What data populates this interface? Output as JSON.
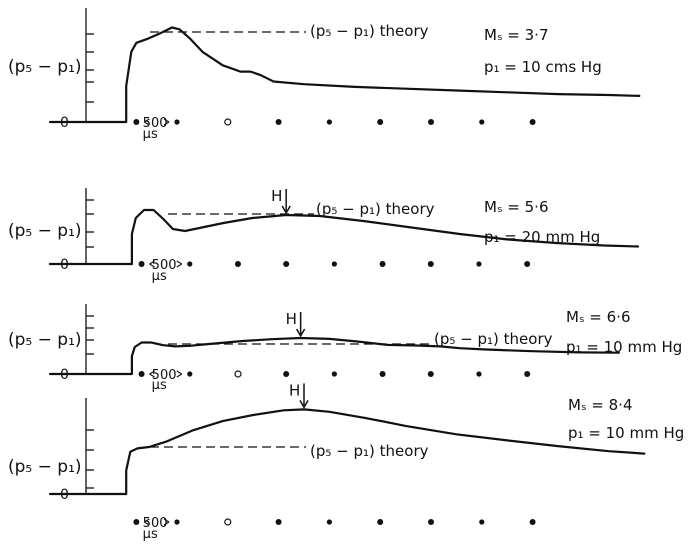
{
  "ylabel": "(p₅ − p₁)",
  "zero_label": "0",
  "theory_label": "(p₅ − p₁) theory",
  "arrow_label": "H",
  "time_marker": {
    "label": "500",
    "unit": "μs"
  },
  "chart_data": [
    {
      "type": "line",
      "params": {
        "ms": "Mₛ = 3·7",
        "p1": "p₁ = 10 cms Hg"
      },
      "has_H": false,
      "theory_level": 1.0,
      "curve": [
        [
          0,
          0
        ],
        [
          1.5,
          0
        ],
        [
          1.5,
          0.4
        ],
        [
          1.6,
          0.78
        ],
        [
          1.7,
          0.88
        ],
        [
          1.9,
          0.92
        ],
        [
          2.15,
          0.98
        ],
        [
          2.4,
          1.05
        ],
        [
          2.55,
          1.03
        ],
        [
          2.75,
          0.93
        ],
        [
          3.0,
          0.78
        ],
        [
          3.4,
          0.63
        ],
        [
          3.75,
          0.56
        ],
        [
          3.95,
          0.56
        ],
        [
          4.15,
          0.52
        ],
        [
          4.4,
          0.45
        ],
        [
          5,
          0.42
        ],
        [
          6,
          0.39
        ],
        [
          7,
          0.37
        ],
        [
          8,
          0.35
        ],
        [
          9,
          0.33
        ],
        [
          10,
          0.31
        ],
        [
          11,
          0.3
        ],
        [
          11.6,
          0.29
        ]
      ],
      "dots_x": [
        1.7,
        2.5,
        3.5,
        4.5,
        5.5,
        6.5,
        7.5,
        8.5,
        9.5
      ]
    },
    {
      "type": "line",
      "params": {
        "ms": "Mₛ = 5·6",
        "p1": "p₁ = 20 mm Hg"
      },
      "has_H": true,
      "H_x": 4.9,
      "theory_level": 1.0,
      "curve": [
        [
          0,
          0
        ],
        [
          1.7,
          0
        ],
        [
          1.7,
          0.6
        ],
        [
          1.78,
          0.92
        ],
        [
          1.95,
          1.08
        ],
        [
          2.15,
          1.08
        ],
        [
          2.35,
          0.9
        ],
        [
          2.55,
          0.7
        ],
        [
          2.8,
          0.66
        ],
        [
          3.1,
          0.72
        ],
        [
          3.6,
          0.82
        ],
        [
          4.2,
          0.92
        ],
        [
          4.9,
          0.98
        ],
        [
          5.6,
          0.96
        ],
        [
          6.5,
          0.86
        ],
        [
          7.5,
          0.73
        ],
        [
          8.5,
          0.6
        ],
        [
          9.5,
          0.49
        ],
        [
          10.5,
          0.42
        ],
        [
          11.5,
          0.37
        ],
        [
          12.2,
          0.35
        ]
      ],
      "dots_x": [
        1.9,
        2.9,
        3.9,
        4.9,
        5.9,
        6.9,
        7.9,
        8.9,
        9.9
      ]
    },
    {
      "type": "line",
      "params": {
        "ms": "Mₛ = 6·6",
        "p1": "p₁ = 10 mm Hg"
      },
      "has_H": true,
      "H_x": 5.2,
      "theory_level": 1.0,
      "curve": [
        [
          0,
          0
        ],
        [
          1.7,
          0
        ],
        [
          1.7,
          0.6
        ],
        [
          1.76,
          0.9
        ],
        [
          1.9,
          1.05
        ],
        [
          2.1,
          1.05
        ],
        [
          2.35,
          0.96
        ],
        [
          2.6,
          0.92
        ],
        [
          2.9,
          0.94
        ],
        [
          3.3,
          1.0
        ],
        [
          4,
          1.1
        ],
        [
          4.6,
          1.16
        ],
        [
          5.2,
          1.2
        ],
        [
          5.8,
          1.17
        ],
        [
          6.4,
          1.08
        ],
        [
          7,
          0.97
        ],
        [
          7.6,
          0.95
        ],
        [
          8.1,
          0.92
        ],
        [
          8.5,
          0.86
        ],
        [
          9,
          0.82
        ],
        [
          10,
          0.76
        ],
        [
          11,
          0.72
        ],
        [
          11.8,
          0.71
        ]
      ],
      "dots_x": [
        1.9,
        2.9,
        3.9,
        4.9,
        5.9,
        6.9,
        7.9,
        8.9,
        9.9
      ]
    },
    {
      "type": "line",
      "params": {
        "ms": "Mₛ = 8·4",
        "p1": "p₁ = 10 mm Hg"
      },
      "has_H": true,
      "H_x": 5.0,
      "theory_level": 1.0,
      "curve": [
        [
          0,
          0
        ],
        [
          1.5,
          0
        ],
        [
          1.5,
          0.5
        ],
        [
          1.58,
          0.9
        ],
        [
          1.72,
          0.97
        ],
        [
          1.95,
          1.0
        ],
        [
          2.3,
          1.12
        ],
        [
          2.8,
          1.35
        ],
        [
          3.4,
          1.55
        ],
        [
          4.0,
          1.68
        ],
        [
          4.6,
          1.78
        ],
        [
          5.0,
          1.8
        ],
        [
          5.5,
          1.75
        ],
        [
          6.2,
          1.62
        ],
        [
          7,
          1.45
        ],
        [
          8,
          1.27
        ],
        [
          9,
          1.14
        ],
        [
          10,
          1.02
        ],
        [
          11,
          0.91
        ],
        [
          11.7,
          0.86
        ]
      ],
      "dots_x": [
        1.7,
        2.5,
        3.5,
        4.5,
        5.5,
        6.5,
        7.5,
        8.5,
        9.5
      ]
    }
  ]
}
